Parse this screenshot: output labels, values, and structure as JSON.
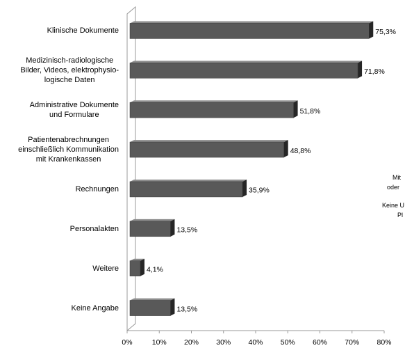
{
  "chart_data": {
    "type": "bar",
    "orientation": "horizontal",
    "categories": [
      "Klinische Dokumente",
      "Medizinisch-radiologische\nBilder, Videos, elektrophysio-\nlogische Daten",
      "Administrative Dokumente\nund Formulare",
      "Patientenabrechnungen\neinschließlich Kommunikation\nmit Krankenkassen",
      "Rechnungen",
      "Personalakten",
      "Weitere",
      "Keine Angabe"
    ],
    "values": [
      75.3,
      71.8,
      51.8,
      48.8,
      35.9,
      13.5,
      4.1,
      13.5
    ],
    "value_labels": [
      "75,3%",
      "71,8%",
      "51,8%",
      "48,8%",
      "35,9%",
      "13,5%",
      "4,1%",
      "13,5%"
    ],
    "color": "#595959",
    "xlim": [
      0,
      80
    ],
    "xticks": [
      {
        "value": 0,
        "label": "0%"
      },
      {
        "value": 10,
        "label": "10%"
      },
      {
        "value": 20,
        "label": "20%"
      },
      {
        "value": 30,
        "label": "30%"
      },
      {
        "value": 40,
        "label": "40%"
      },
      {
        "value": 50,
        "label": "50%"
      },
      {
        "value": 60,
        "label": "60%"
      },
      {
        "value": 70,
        "label": "70%"
      },
      {
        "value": 80,
        "label": "80%"
      }
    ],
    "annotations": [
      "Mit",
      "oder",
      "Keine U",
      "Pl"
    ]
  }
}
